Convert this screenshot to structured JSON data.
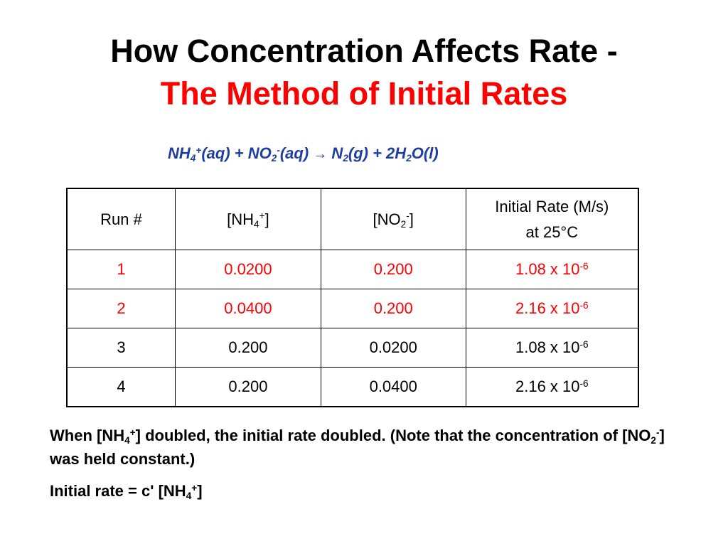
{
  "colors": {
    "title_accent": "#ff0000",
    "equation": "#1f3fa0",
    "highlight_row": "#ff0000",
    "text": "#000000"
  },
  "title": {
    "line1": "How Concentration Affects Rate -",
    "line2": "The Method of Initial Rates"
  },
  "equation": {
    "r1_base": "NH",
    "r1_sub": "4",
    "r1_sup": "+",
    "r1_phase": "(aq) + NO",
    "r2_sub": "2",
    "r2_sup": "-",
    "r2_phase": "(aq) ",
    "arrow": "→",
    "p1_base": " N",
    "p1_sub": "2",
    "p1_phase": "(g) + 2H",
    "p2_sub": "2",
    "p2_phase": "O(l)"
  },
  "table": {
    "headers": {
      "run": "Run #",
      "nh4_open": "[NH",
      "nh4_sub": "4",
      "nh4_sup": "+",
      "nh4_close": "]",
      "no2_open": "[NO",
      "no2_sub": "2",
      "no2_sup": "-",
      "no2_close": "]",
      "rate_line1": "Initial Rate (M/s)",
      "rate_line2": "at 25°C"
    },
    "exponent": "-6",
    "rows": [
      {
        "run": "1",
        "nh4": "0.0200",
        "no2": "0.200",
        "rate_mantissa": "1.08 x 10"
      },
      {
        "run": "2",
        "nh4": "0.0400",
        "no2": "0.200",
        "rate_mantissa": "2.16 x 10"
      },
      {
        "run": "3",
        "nh4": "0.200",
        "no2": "0.0200",
        "rate_mantissa": "1.08 x 10"
      },
      {
        "run": "4",
        "nh4": "0.200",
        "no2": "0.0400",
        "rate_mantissa": "2.16 x 10"
      }
    ]
  },
  "notes": {
    "p1_a": "When [NH",
    "p1_sub": "4",
    "p1_sup": "+",
    "p1_b": "] doubled, the initial rate doubled.  (Note that the concentration of [NO",
    "p1_sub2": "2",
    "p1_sup2": "-",
    "p1_c": "] was held constant.)",
    "p2_a": "Initial rate = c' [NH",
    "p2_sub": "4",
    "p2_sup": "+",
    "p2_b": "]"
  }
}
